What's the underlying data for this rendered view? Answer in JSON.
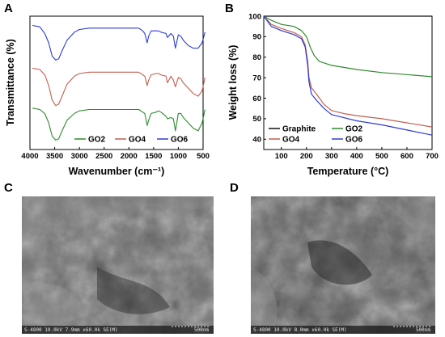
{
  "panels": {
    "a": "A",
    "b": "B",
    "c": "C",
    "d": "D"
  },
  "chart_data": [
    {
      "type": "line",
      "panel": "A",
      "title": "",
      "xlabel": "Wavenumber (cm⁻¹)",
      "ylabel": "Transmittance (%)",
      "xlim": [
        4000,
        500
      ],
      "x_ticks": [
        "4000",
        "3500",
        "3000",
        "2500",
        "2000",
        "1500",
        "1000",
        "500"
      ],
      "legend_position": "bottom-right",
      "series": [
        {
          "name": "GO2",
          "color": "#2e8b2e",
          "x": [
            3950,
            3800,
            3700,
            3620,
            3550,
            3480,
            3420,
            3350,
            3250,
            3100,
            3000,
            2800,
            2500,
            2200,
            2000,
            1800,
            1720,
            1680,
            1630,
            1600,
            1550,
            1450,
            1400,
            1350,
            1250,
            1220,
            1150,
            1100,
            1060,
            1000,
            950,
            900,
            800,
            700,
            600,
            520,
            460
          ],
          "y": [
            0.31,
            0.3,
            0.27,
            0.2,
            0.1,
            0.07,
            0.08,
            0.14,
            0.22,
            0.27,
            0.29,
            0.3,
            0.3,
            0.3,
            0.3,
            0.3,
            0.28,
            0.27,
            0.18,
            0.22,
            0.27,
            0.28,
            0.29,
            0.28,
            0.25,
            0.23,
            0.24,
            0.23,
            0.14,
            0.27,
            0.27,
            0.24,
            0.2,
            0.16,
            0.14,
            0.2,
            0.3
          ]
        },
        {
          "name": "GO4",
          "color": "#c0604e",
          "x": [
            3950,
            3800,
            3700,
            3620,
            3550,
            3480,
            3420,
            3350,
            3250,
            3100,
            3000,
            2800,
            2500,
            2200,
            2000,
            1800,
            1720,
            1680,
            1630,
            1600,
            1550,
            1450,
            1400,
            1350,
            1250,
            1220,
            1150,
            1100,
            1060,
            1000,
            950,
            900,
            800,
            700,
            600,
            520,
            460
          ],
          "y": [
            0.61,
            0.6,
            0.56,
            0.48,
            0.37,
            0.33,
            0.34,
            0.4,
            0.49,
            0.55,
            0.57,
            0.58,
            0.58,
            0.58,
            0.58,
            0.58,
            0.56,
            0.55,
            0.48,
            0.52,
            0.56,
            0.57,
            0.57,
            0.56,
            0.55,
            0.5,
            0.55,
            0.52,
            0.47,
            0.54,
            0.53,
            0.5,
            0.46,
            0.42,
            0.4,
            0.44,
            0.54
          ]
        },
        {
          "name": "GO6",
          "color": "#2d3ad6",
          "x": [
            3950,
            3800,
            3700,
            3620,
            3550,
            3480,
            3420,
            3350,
            3250,
            3100,
            3000,
            2800,
            2500,
            2200,
            2000,
            1800,
            1720,
            1680,
            1630,
            1600,
            1550,
            1450,
            1400,
            1350,
            1250,
            1220,
            1150,
            1100,
            1060,
            1000,
            950,
            900,
            800,
            700,
            600,
            520,
            460
          ],
          "y": [
            0.93,
            0.92,
            0.87,
            0.8,
            0.7,
            0.67,
            0.68,
            0.74,
            0.82,
            0.88,
            0.9,
            0.91,
            0.91,
            0.91,
            0.91,
            0.91,
            0.89,
            0.87,
            0.8,
            0.85,
            0.89,
            0.89,
            0.89,
            0.88,
            0.87,
            0.84,
            0.87,
            0.85,
            0.76,
            0.86,
            0.85,
            0.82,
            0.78,
            0.76,
            0.76,
            0.8,
            0.88
          ]
        }
      ]
    },
    {
      "type": "line",
      "panel": "B",
      "title": "",
      "xlabel": "Temperature (°C)",
      "ylabel": "Weight loss (%)",
      "xlim": [
        30,
        700
      ],
      "ylim": [
        35,
        100
      ],
      "x_ticks": [
        100,
        200,
        300,
        400,
        500,
        600,
        700
      ],
      "y_ticks": [
        40,
        50,
        60,
        70,
        80,
        90,
        100
      ],
      "legend_position": "bottom-left",
      "series": [
        {
          "name": "Graphite",
          "color": "#111111",
          "x": [
            30,
            100,
            200,
            300,
            400,
            500,
            600,
            700
          ],
          "y": [
            100,
            100,
            100,
            100,
            100,
            100,
            100,
            100
          ]
        },
        {
          "name": "GO2",
          "color": "#2e8b2e",
          "x": [
            30,
            60,
            100,
            150,
            180,
            200,
            215,
            230,
            250,
            300,
            400,
            500,
            600,
            700
          ],
          "y": [
            100,
            98,
            96,
            95,
            93,
            90,
            85,
            81,
            78,
            76,
            74,
            72.5,
            71.5,
            70.5
          ]
        },
        {
          "name": "GO4",
          "color": "#c0604e",
          "x": [
            30,
            60,
            100,
            150,
            180,
            195,
            205,
            210,
            220,
            240,
            270,
            300,
            350,
            400,
            500,
            600,
            700
          ],
          "y": [
            100,
            96,
            94,
            92,
            90,
            86,
            78,
            70,
            65,
            62,
            57,
            54,
            52.5,
            51.5,
            50,
            48,
            46
          ]
        },
        {
          "name": "GO6",
          "color": "#2d3ad6",
          "x": [
            30,
            60,
            100,
            150,
            180,
            195,
            205,
            210,
            220,
            240,
            270,
            300,
            350,
            400,
            500,
            600,
            700
          ],
          "y": [
            100,
            95,
            93,
            91,
            89,
            85,
            76,
            68,
            62,
            59,
            55,
            52,
            50.5,
            49,
            47,
            44.5,
            42
          ]
        }
      ]
    }
  ],
  "sem": {
    "c_caption": "S-4800 10.0kV 7.9mm x60.0k SE(M)",
    "c_scale": "500nm",
    "d_caption": "S-4800 10.0kV 8.0mm x60.0k SE(M)",
    "d_scale": "500nm",
    "base_color": "#6e6e6e"
  }
}
